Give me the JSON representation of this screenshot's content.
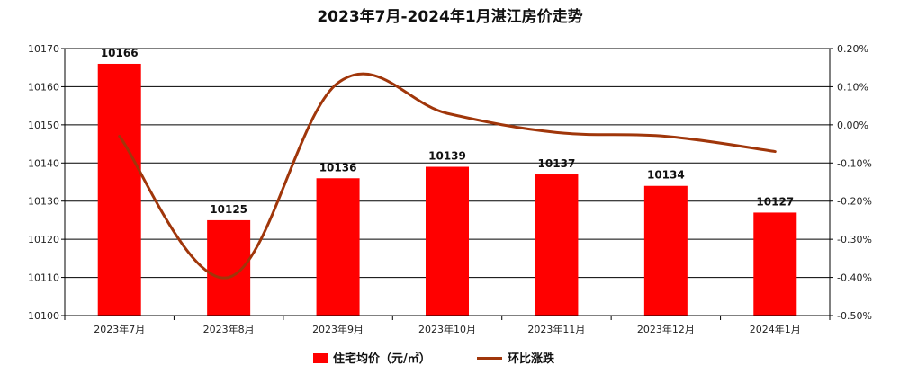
{
  "chart_data": {
    "type": "bar",
    "title": "2023年7月-2024年1月湛江房价走势",
    "categories": [
      "2023年7月",
      "2023年8月",
      "2023年9月",
      "2023年10月",
      "2023年11月",
      "2023年12月",
      "2024年1月"
    ],
    "series": [
      {
        "name": "住宅均价（元/㎡）",
        "type": "bar",
        "axis": "left",
        "color": "#ff0000",
        "values": [
          10166,
          10125,
          10136,
          10139,
          10137,
          10134,
          10127
        ],
        "labels": [
          "10166",
          "10125",
          "10136",
          "10139",
          "10137",
          "10134",
          "10127"
        ]
      },
      {
        "name": "环比涨跌",
        "type": "line",
        "axis": "right",
        "color": "#a0360a",
        "values": [
          -0.03,
          -0.4,
          0.11,
          0.03,
          -0.02,
          -0.03,
          -0.07
        ]
      }
    ],
    "ylim_left": [
      10100,
      10170
    ],
    "yticks_left": [
      "10170",
      "10160",
      "10150",
      "10140",
      "10130",
      "10120",
      "10110",
      "10100"
    ],
    "ylim_right": [
      -0.5,
      0.2
    ],
    "yticks_right": [
      "0.20%",
      "0.10%",
      "0.00%",
      "-0.10%",
      "-0.20%",
      "-0.30%",
      "-0.40%",
      "-0.50%"
    ],
    "grid": true,
    "legend": "bottom-center"
  }
}
